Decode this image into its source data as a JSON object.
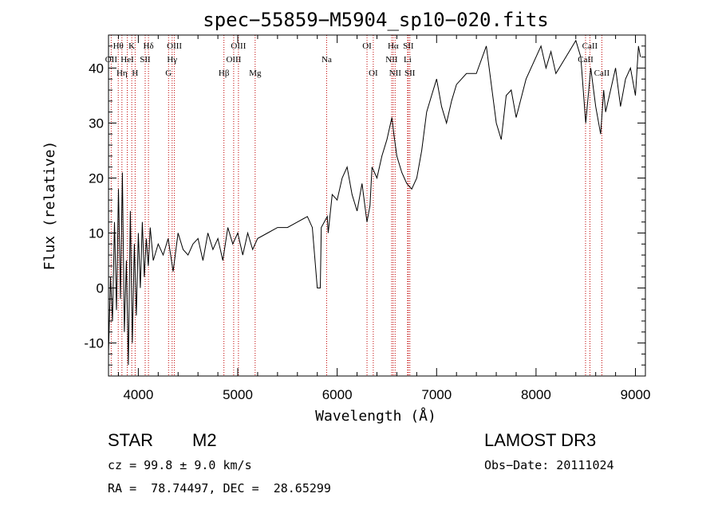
{
  "chart_data": {
    "type": "line",
    "title": "spec−55859−M5904_sp10−020.fits",
    "xlabel": "Wavelength (Å)",
    "ylabel": "Flux (relative)",
    "xlim": [
      3700,
      9100
    ],
    "ylim": [
      -16,
      46
    ],
    "x_ticks": [
      4000,
      5000,
      6000,
      7000,
      8000,
      9000
    ],
    "y_ticks": [
      -10,
      0,
      10,
      20,
      30,
      40
    ],
    "series": [
      {
        "name": "spectrum",
        "x": [
          3700,
          3720,
          3740,
          3760,
          3780,
          3800,
          3820,
          3840,
          3860,
          3880,
          3900,
          3920,
          3940,
          3960,
          3980,
          4000,
          4020,
          4040,
          4060,
          4080,
          4100,
          4120,
          4150,
          4200,
          4250,
          4300,
          4350,
          4400,
          4450,
          4500,
          4550,
          4600,
          4650,
          4700,
          4750,
          4800,
          4850,
          4900,
          4950,
          5000,
          5050,
          5100,
          5150,
          5200,
          5300,
          5400,
          5500,
          5600,
          5700,
          5750,
          5800,
          5830,
          5840,
          5900,
          5910,
          5950,
          6000,
          6050,
          6100,
          6150,
          6200,
          6250,
          6300,
          6330,
          6350,
          6400,
          6450,
          6500,
          6550,
          6570,
          6600,
          6650,
          6700,
          6750,
          6800,
          6850,
          6900,
          6950,
          7000,
          7050,
          7100,
          7150,
          7200,
          7300,
          7400,
          7500,
          7600,
          7650,
          7700,
          7750,
          7800,
          7900,
          8000,
          8050,
          8100,
          8150,
          8200,
          8300,
          8400,
          8450,
          8500,
          8550,
          8600,
          8650,
          8680,
          8700,
          8750,
          8800,
          8850,
          8900,
          8950,
          9000,
          9030,
          9050
        ],
        "values": [
          -12,
          2,
          -6,
          12,
          -4,
          18,
          -2,
          21,
          -8,
          5,
          -14,
          14,
          -10,
          8,
          -5,
          10,
          0,
          12,
          2,
          9,
          4,
          11,
          5,
          8,
          6,
          9,
          3,
          10,
          7,
          6,
          8,
          9,
          5,
          10,
          7,
          9,
          5,
          11,
          8,
          10,
          6,
          10,
          7,
          9,
          10,
          11,
          11,
          12,
          13,
          11,
          0,
          0,
          11,
          13,
          10,
          17,
          16,
          20,
          22,
          17,
          14,
          19,
          12,
          15,
          22,
          20,
          24,
          27,
          31,
          28,
          24,
          21,
          19,
          18,
          20,
          25,
          32,
          35,
          38,
          33,
          30,
          34,
          37,
          39,
          39,
          44,
          30,
          27,
          35,
          36,
          31,
          38,
          42,
          44,
          40,
          43,
          39,
          42,
          45,
          42,
          30,
          40,
          33,
          28,
          36,
          32,
          36,
          40,
          33,
          38,
          40,
          35,
          44,
          42
        ]
      }
    ],
    "lines": [
      {
        "label": "Hθ",
        "x": 3798,
        "row": 0
      },
      {
        "label": "OII",
        "x": 3727,
        "row": 1
      },
      {
        "label": "Hη",
        "x": 3835,
        "row": 2
      },
      {
        "label": "HeI",
        "x": 3889,
        "row": 1
      },
      {
        "label": "K",
        "x": 3934,
        "row": 0
      },
      {
        "label": "H",
        "x": 3968,
        "row": 2
      },
      {
        "label": "SII",
        "x": 4069,
        "row": 1
      },
      {
        "label": "Hδ",
        "x": 4102,
        "row": 0
      },
      {
        "label": "Hγ",
        "x": 4340,
        "row": 1
      },
      {
        "label": "G",
        "x": 4304,
        "row": 2
      },
      {
        "label": "OIII",
        "x": 4363,
        "row": 0
      },
      {
        "label": "Hβ",
        "x": 4861,
        "row": 2
      },
      {
        "label": "OIII",
        "x": 5007,
        "row": 0
      },
      {
        "label": "OIII",
        "x": 4959,
        "row": 1
      },
      {
        "label": "Mg",
        "x": 5175,
        "row": 2
      },
      {
        "label": "Na",
        "x": 5894,
        "row": 1
      },
      {
        "label": "OI",
        "x": 6300,
        "row": 0
      },
      {
        "label": "OI",
        "x": 6363,
        "row": 2
      },
      {
        "label": "Hα",
        "x": 6563,
        "row": 0
      },
      {
        "label": "NII",
        "x": 6548,
        "row": 1
      },
      {
        "label": "NII",
        "x": 6583,
        "row": 2
      },
      {
        "label": "SII",
        "x": 6716,
        "row": 0
      },
      {
        "label": "Li",
        "x": 6708,
        "row": 1
      },
      {
        "label": "SII",
        "x": 6731,
        "row": 2
      },
      {
        "label": "CaII",
        "x": 8542,
        "row": 0
      },
      {
        "label": "CaII",
        "x": 8498,
        "row": 1
      },
      {
        "label": "CaII",
        "x": 8662,
        "row": 2
      }
    ]
  },
  "info": {
    "object_class": "STAR",
    "subclass": "M2",
    "survey": "LAMOST DR3",
    "cz": "cz = 99.8 ± 9.0 km/s",
    "obs_date": "Obs−Date: 20111024",
    "coords": "RA =  78.74497, DEC =  28.65299"
  }
}
